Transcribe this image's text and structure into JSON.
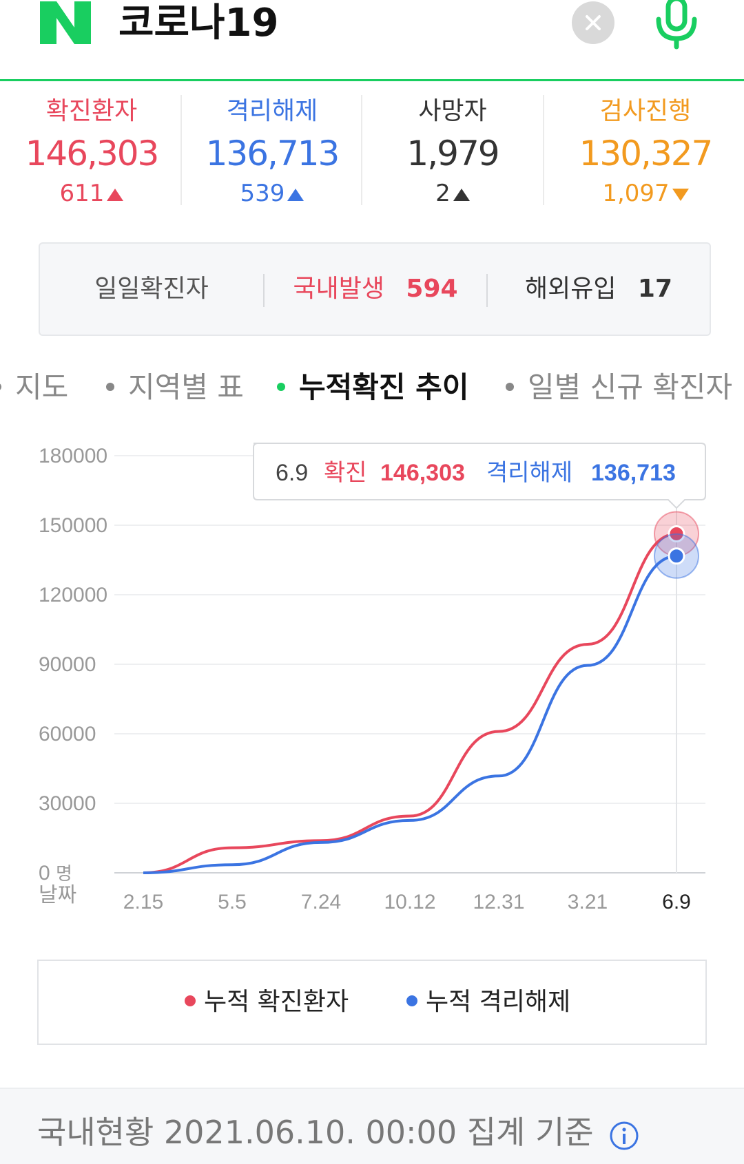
{
  "header": {
    "query": "코로나19",
    "logo_letter": "N",
    "icons": {
      "logo": "naver-logo",
      "clear": "close-icon",
      "voice": "mic-icon"
    }
  },
  "stats": [
    {
      "label": "확진환자",
      "total": "146,303",
      "delta": "611",
      "trend": "up",
      "color": "#e8475c"
    },
    {
      "label": "격리해제",
      "total": "136,713",
      "delta": "539",
      "trend": "up",
      "color": "#3b74e2"
    },
    {
      "label": "사망자",
      "total": "1,979",
      "delta": "2",
      "trend": "up",
      "color": "#333333"
    },
    {
      "label": "검사진행",
      "total": "130,327",
      "delta": "1,097",
      "trend": "down",
      "color": "#f29a1f"
    }
  ],
  "daily": {
    "label": "일일확진자",
    "domestic_label": "국내발생",
    "domestic_value": "594",
    "overseas_label": "해외유입",
    "overseas_value": "17"
  },
  "tabs": [
    {
      "label": "지도",
      "active": false
    },
    {
      "label": "지역별 표",
      "active": false
    },
    {
      "label": "누적확진 추이",
      "active": true
    },
    {
      "label": "일별 신규 확진자",
      "active": false
    }
  ],
  "chart_data": {
    "type": "line",
    "x": [
      "2.15",
      "5.5",
      "7.24",
      "10.12",
      "12.31",
      "3.21",
      "6.9"
    ],
    "xlabel": "날짜",
    "ylabel_unit": "명",
    "y_ticks": [
      "180000",
      "150000",
      "120000",
      "90000",
      "60000",
      "30000",
      "0"
    ],
    "ylim": [
      0,
      180000
    ],
    "grid": true,
    "legend_position": "bottom",
    "series": [
      {
        "name": "누적 확진환자",
        "color": "#e8475c",
        "values": [
          0,
          10800,
          13900,
          24500,
          61000,
          98600,
          146303
        ]
      },
      {
        "name": "누적 격리해제",
        "color": "#3b74e2",
        "values": [
          0,
          3500,
          13100,
          22600,
          41800,
          89500,
          136713
        ]
      }
    ],
    "tooltip": {
      "date": "6.9",
      "confirmed_label": "확진",
      "confirmed_value": "146,303",
      "released_label": "격리해제",
      "released_value": "136,713"
    }
  },
  "footer": {
    "note": "국내현황 2021.06.10. 00:00 집계 기준",
    "icon": "info-icon"
  }
}
